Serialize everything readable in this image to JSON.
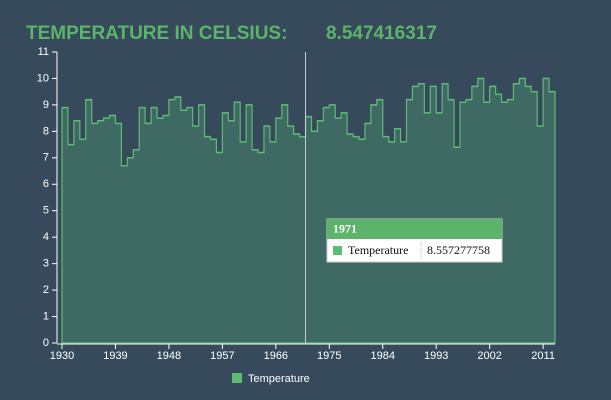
{
  "chart_data": {
    "type": "step-area",
    "title": "TEMPERATURE IN CELSIUS:",
    "headline": "8.547416317",
    "x": [
      1930,
      1931,
      1932,
      1933,
      1934,
      1935,
      1936,
      1937,
      1938,
      1939,
      1940,
      1941,
      1942,
      1943,
      1944,
      1945,
      1946,
      1947,
      1948,
      1949,
      1950,
      1951,
      1952,
      1953,
      1954,
      1955,
      1956,
      1957,
      1958,
      1959,
      1960,
      1961,
      1962,
      1963,
      1964,
      1965,
      1966,
      1967,
      1968,
      1969,
      1970,
      1971,
      1972,
      1973,
      1974,
      1975,
      1976,
      1977,
      1978,
      1979,
      1980,
      1981,
      1982,
      1983,
      1984,
      1985,
      1986,
      1987,
      1988,
      1989,
      1990,
      1991,
      1992,
      1993,
      1994,
      1995,
      1996,
      1997,
      1998,
      1999,
      2000,
      2001,
      2002,
      2003,
      2004,
      2005,
      2006,
      2007,
      2008,
      2009,
      2010,
      2011,
      2012
    ],
    "series": [
      {
        "name": "Temperature",
        "color": "#5dbb74",
        "fill": "#3f6a63",
        "values": [
          8.9,
          7.5,
          8.4,
          7.7,
          9.2,
          8.3,
          8.4,
          8.5,
          8.6,
          8.3,
          6.7,
          7.0,
          7.3,
          8.9,
          8.3,
          8.9,
          8.5,
          8.6,
          9.2,
          9.3,
          8.8,
          8.9,
          8.2,
          9.0,
          7.8,
          7.7,
          7.2,
          8.7,
          8.4,
          9.1,
          7.6,
          9.0,
          7.3,
          7.2,
          8.2,
          7.6,
          8.5,
          9.0,
          8.2,
          7.9,
          7.8,
          8.557277758,
          8.0,
          8.4,
          8.9,
          9.0,
          8.5,
          8.7,
          7.9,
          7.8,
          7.7,
          8.3,
          9.0,
          9.2,
          7.8,
          7.6,
          8.1,
          7.6,
          9.2,
          9.7,
          9.8,
          8.7,
          9.7,
          8.7,
          9.8,
          9.2,
          7.4,
          9.1,
          9.2,
          9.7,
          10.0,
          9.1,
          9.7,
          9.4,
          9.1,
          9.2,
          9.8,
          10.0,
          9.7,
          9.5,
          8.2,
          10.0,
          9.5
        ]
      }
    ],
    "xlim": [
      1930,
      2013
    ],
    "xticks": [
      1930,
      1939,
      1948,
      1957,
      1966,
      1975,
      1984,
      1993,
      2002,
      2011
    ],
    "ylim": [
      0,
      11
    ],
    "yticks": [
      0,
      1,
      2,
      3,
      4,
      5,
      6,
      7,
      8,
      9,
      10,
      11
    ],
    "legend": "bottom"
  }
}
